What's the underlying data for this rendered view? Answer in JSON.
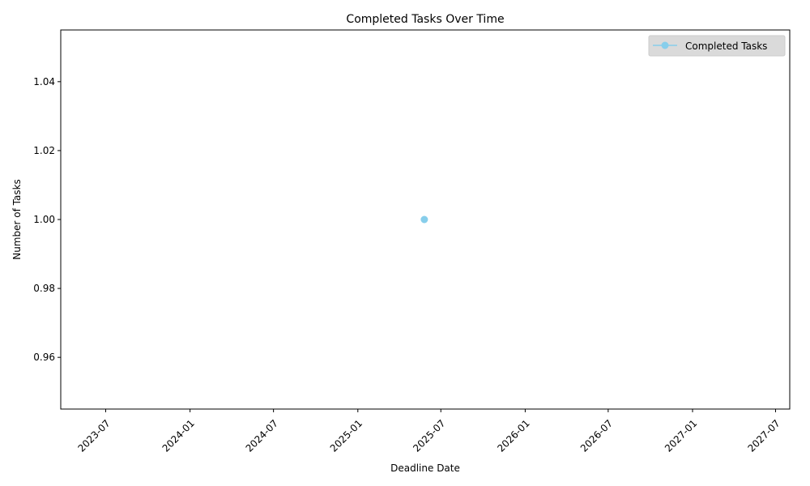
{
  "chart_data": {
    "type": "line",
    "title": "Completed Tasks Over Time",
    "xlabel": "Deadline Date",
    "ylabel": "Number of Tasks",
    "x_axis_type": "date",
    "xlim": [
      "2023-03-25",
      "2027-08-01"
    ],
    "ylim": [
      0.945,
      1.055
    ],
    "x_ticks": [
      "2023-07",
      "2024-01",
      "2024-07",
      "2025-01",
      "2025-07",
      "2026-01",
      "2026-07",
      "2027-01",
      "2027-07"
    ],
    "y_ticks": [
      "0.96",
      "0.98",
      "1.00",
      "1.02",
      "1.04"
    ],
    "x_tick_rotation": 45,
    "grid": false,
    "legend_position": "top-right",
    "series": [
      {
        "name": "Completed Tasks",
        "color": "#87ceeb",
        "marker": "circle",
        "points": [
          {
            "x": "2025-05-26",
            "y": 1.0
          }
        ]
      }
    ]
  }
}
